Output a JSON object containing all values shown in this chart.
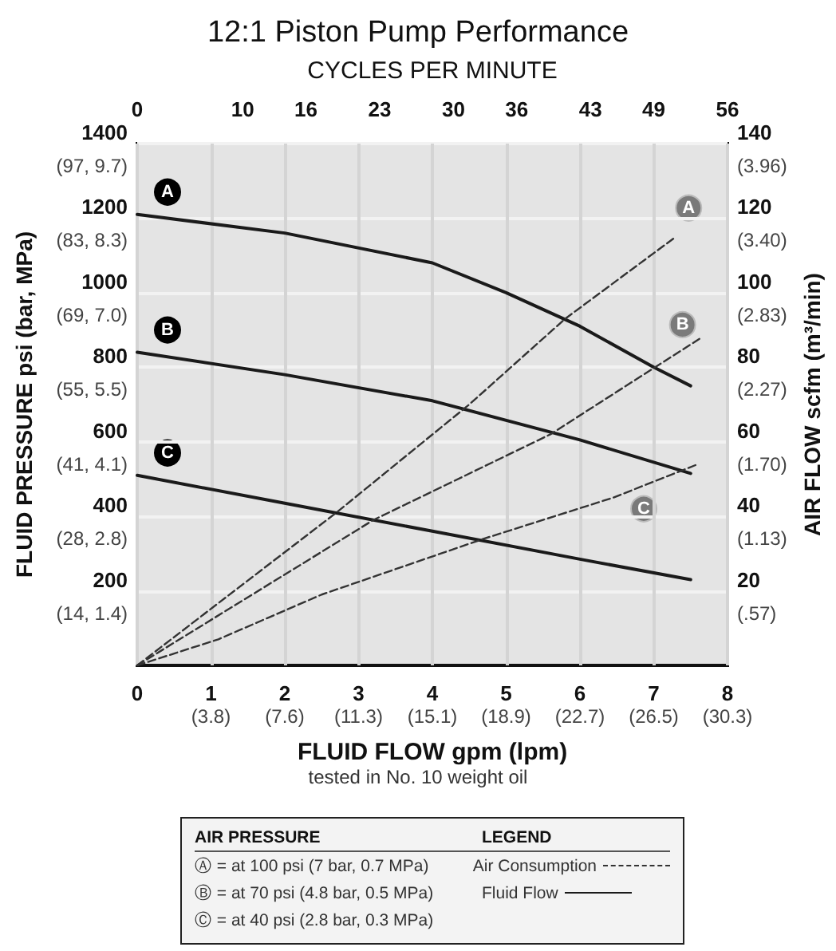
{
  "chart_data": {
    "type": "line",
    "title": "12:1 Piston Pump Performance",
    "xlabel": "FLUID FLOW gpm (lpm)",
    "ylabel": "FLUID PRESSURE psi (bar, MPa)",
    "y2label": "AIR FLOW scfm (m³/min)",
    "x2label": "CYCLES PER MINUTE",
    "legend_title": "LEGEND",
    "annotations": [
      "tested in No. 10 weight oil",
      "AIR PRESSURE",
      "Ⓐ = at 100 psi (7 bar, 0.7 MPa)",
      "Ⓑ = at 70 psi (4.8 bar, 0.5 MPa)",
      "Ⓒ = at 40 psi (2.8 bar, 0.3 MPa)",
      "Air Consumption",
      "Fluid Flow",
      "(3.8)",
      "(7.6)",
      "(11.3)",
      "(15.1)",
      "(18.9)",
      "(22.7)",
      "(26.5)",
      "(30.3)",
      "(14, 1.4)",
      "(28, 2.8)",
      "(41, 4.1)",
      "(55, 5.5)",
      "(69, 7.0)",
      "(83, 8.3)",
      "(97, 9.7)",
      "(.57)",
      "(1.13)",
      "(1.70)",
      "(2.27)",
      "(2.83)",
      "(3.40)",
      "(3.96)"
    ],
    "xlim": [
      0,
      8
    ],
    "xticks": [
      0,
      1,
      2,
      3,
      4,
      5,
      6,
      7,
      8
    ],
    "x2lim": [
      0,
      56
    ],
    "x2ticks": [
      0,
      10,
      16,
      23,
      30,
      36,
      43,
      49,
      56
    ],
    "ylim": [
      0,
      1400
    ],
    "yticks": [
      200,
      400,
      600,
      800,
      1000,
      1200,
      1400
    ],
    "y2lim": [
      0,
      140
    ],
    "y2ticks": [
      20,
      40,
      60,
      80,
      100,
      120,
      140
    ],
    "grid": true,
    "marker": "none",
    "series": [
      {
        "name": "A",
        "color": "#1a1a1a",
        "line_style": "solid",
        "x": [
          0,
          2,
          4,
          5,
          6,
          7,
          7.5
        ],
        "values": [
          1210,
          1160,
          1080,
          1000,
          910,
          800,
          750
        ]
      },
      {
        "name": "B",
        "color": "#1a1a1a",
        "line_style": "solid",
        "x": [
          0,
          2,
          4,
          6,
          7.5
        ],
        "values": [
          840,
          780,
          710,
          605,
          515
        ]
      },
      {
        "name": "C",
        "color": "#1a1a1a",
        "line_style": "solid",
        "x": [
          0,
          2,
          4,
          6,
          7.5
        ],
        "values": [
          510,
          435,
          360,
          285,
          230
        ]
      },
      {
        "name": "A",
        "color": "#333333",
        "line_style": "dashed",
        "axis": "y2",
        "x": [
          0,
          2.7,
          4.5,
          5.8,
          7.3
        ],
        "values": [
          0,
          41,
          70,
          93,
          115
        ]
      },
      {
        "name": "B",
        "color": "#333333",
        "line_style": "dashed",
        "axis": "y2",
        "x": [
          0,
          3.2,
          5.6,
          7.65
        ],
        "values": [
          0,
          39,
          62,
          88
        ]
      },
      {
        "name": "C",
        "color": "#333333",
        "line_style": "dashed",
        "axis": "y2",
        "x": [
          0,
          1.1,
          2.5,
          4.7,
          6.45,
          7.6
        ],
        "values": [
          0,
          7,
          19,
          34,
          45,
          54
        ]
      }
    ]
  }
}
